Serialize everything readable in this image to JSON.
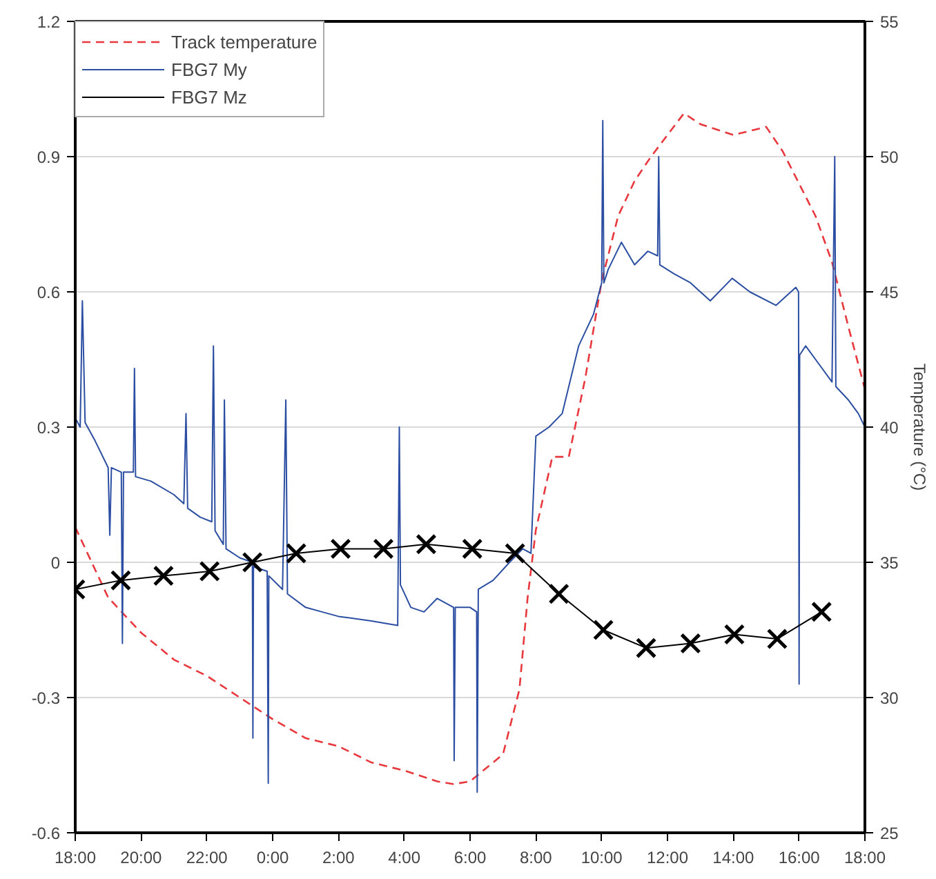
{
  "chart_data": {
    "type": "line",
    "xlim": [
      "2000-01-01T18:00",
      "2000-01-02T18:00"
    ],
    "xticks": [
      {
        "value": "2000-01-01T18:00",
        "label": "18:00"
      },
      {
        "value": "2000-01-01T20:00",
        "label": "20:00"
      },
      {
        "value": "2000-01-01T22:00",
        "label": "22:00"
      },
      {
        "value": "2000-01-02T00:00",
        "label": "0:00"
      },
      {
        "value": "2000-01-02T02:00",
        "label": "2:00"
      },
      {
        "value": "2000-01-02T04:00",
        "label": "4:00"
      },
      {
        "value": "2000-01-02T06:00",
        "label": "6:00"
      },
      {
        "value": "2000-01-02T08:00",
        "label": "8:00"
      },
      {
        "value": "2000-01-02T10:00",
        "label": "10:00"
      },
      {
        "value": "2000-01-02T12:00",
        "label": "12:00"
      },
      {
        "value": "2000-01-02T14:00",
        "label": "14:00"
      },
      {
        "value": "2000-01-02T16:00",
        "label": "16:00"
      },
      {
        "value": "2000-01-02T18:00",
        "label": "18:00"
      }
    ],
    "ylim": [
      -0.6,
      1.2
    ],
    "yticks": [
      {
        "value": -0.6,
        "label": "-0.6"
      },
      {
        "value": -0.3,
        "label": "-0.3"
      },
      0,
      {
        "value": 0.3,
        "label": "0.3"
      },
      {
        "value": 0.6,
        "label": "0.6"
      },
      {
        "value": 0.9,
        "label": "0.9"
      },
      {
        "value": 1.2,
        "label": "1.2"
      }
    ],
    "y2lim": [
      25,
      55
    ],
    "y2ticks": [
      25,
      30,
      35,
      40,
      45,
      50,
      55
    ],
    "y2label": "Temperature (°C)",
    "grid": "y",
    "legend": "top left",
    "series": [
      {
        "name": "Track temperature",
        "color": "#e8383d",
        "axis": "y2",
        "line_style": "dashed",
        "marker": "none",
        "x": [
          "2000-01-01T18:00",
          "2000-01-01T19:00",
          "2000-01-01T20:00",
          "2000-01-01T21:00",
          "2000-01-01T22:00",
          "2000-01-01T23:00",
          "2000-01-02T00:00",
          "2000-01-02T01:00",
          "2000-01-02T02:00",
          "2000-01-02T03:00",
          "2000-01-02T04:00",
          "2000-01-02T05:00",
          "2000-01-02T05:30",
          "2000-01-02T06:00",
          "2000-01-02T07:00",
          "2000-01-02T07:30",
          "2000-01-02T07:45",
          "2000-01-02T08:00",
          "2000-01-02T08:30",
          "2000-01-02T09:00",
          "2000-01-02T09:30",
          "2000-01-02T10:00",
          "2000-01-02T10:30",
          "2000-01-02T11:00",
          "2000-01-02T11:30",
          "2000-01-02T12:00",
          "2000-01-02T12:30",
          "2000-01-02T13:00",
          "2000-01-02T14:00",
          "2000-01-02T15:00",
          "2000-01-02T15:30",
          "2000-01-02T16:00",
          "2000-01-02T16:30",
          "2000-01-02T17:00",
          "2000-01-02T17:30",
          "2000-01-02T18:00"
        ],
        "values": [
          36.3,
          33.7,
          32.4,
          31.4,
          30.8,
          30.0,
          29.2,
          28.5,
          28.2,
          27.6,
          27.3,
          26.9,
          26.8,
          26.9,
          27.9,
          30.3,
          33.7,
          36.2,
          38.9,
          38.9,
          41.8,
          45.4,
          47.8,
          49.1,
          50.0,
          50.8,
          51.6,
          51.2,
          50.8,
          51.1,
          50.2,
          49.0,
          47.8,
          46.1,
          43.7,
          41.4
        ]
      },
      {
        "name": "FBG7 My",
        "color": "#2b4ea2",
        "line_style": "solid",
        "marker": "none",
        "x": [
          "2000-01-01T18:00",
          "2000-01-01T18:09",
          "2000-01-01T18:13",
          "2000-01-01T18:18",
          "2000-01-01T18:36",
          "2000-01-01T19:00",
          "2000-01-01T19:03",
          "2000-01-01T19:06",
          "2000-01-01T19:24",
          "2000-01-01T19:26",
          "2000-01-01T19:28",
          "2000-01-01T19:46",
          "2000-01-01T19:48",
          "2000-01-01T19:50",
          "2000-01-01T20:18",
          "2000-01-01T21:00",
          "2000-01-01T21:18",
          "2000-01-01T21:22",
          "2000-01-01T21:25",
          "2000-01-01T21:48",
          "2000-01-01T22:09",
          "2000-01-01T22:12",
          "2000-01-01T22:15",
          "2000-01-01T22:30",
          "2000-01-01T22:32",
          "2000-01-01T22:35",
          "2000-01-01T23:00",
          "2000-01-01T23:23",
          "2000-01-01T23:24",
          "2000-01-01T23:25",
          "2000-01-01T23:50",
          "2000-01-01T23:52",
          "2000-01-01T23:53",
          "2000-01-02T00:18",
          "2000-01-02T00:24",
          "2000-01-02T00:27",
          "2000-01-02T01:00",
          "2000-01-02T01:30",
          "2000-01-02T02:00",
          "2000-01-02T03:00",
          "2000-01-02T03:48",
          "2000-01-02T03:51",
          "2000-01-02T03:53",
          "2000-01-02T04:12",
          "2000-01-02T04:36",
          "2000-01-02T05:00",
          "2000-01-02T05:30",
          "2000-01-02T05:31",
          "2000-01-02T05:33",
          "2000-01-02T06:00",
          "2000-01-02T06:12",
          "2000-01-02T06:13",
          "2000-01-02T06:15",
          "2000-01-02T06:42",
          "2000-01-02T07:12",
          "2000-01-02T07:36",
          "2000-01-02T07:51",
          "2000-01-02T08:00",
          "2000-01-02T08:24",
          "2000-01-02T08:48",
          "2000-01-02T09:18",
          "2000-01-02T09:45",
          "2000-01-02T10:00",
          "2000-01-02T10:02",
          "2000-01-02T10:04",
          "2000-01-02T10:12",
          "2000-01-02T10:36",
          "2000-01-02T11:00",
          "2000-01-02T11:24",
          "2000-01-02T11:42",
          "2000-01-02T11:44",
          "2000-01-02T11:46",
          "2000-01-02T12:12",
          "2000-01-02T12:42",
          "2000-01-02T13:18",
          "2000-01-02T13:58",
          "2000-01-02T14:30",
          "2000-01-02T15:18",
          "2000-01-02T15:54",
          "2000-01-02T15:59",
          "2000-01-02T16:00",
          "2000-01-02T16:01",
          "2000-01-02T16:12",
          "2000-01-02T16:36",
          "2000-01-02T17:00",
          "2000-01-02T17:05",
          "2000-01-02T17:07",
          "2000-01-02T17:30",
          "2000-01-02T17:48",
          "2000-01-02T18:00"
        ],
        "values": [
          0.32,
          0.3,
          0.58,
          0.31,
          0.27,
          0.21,
          0.06,
          0.21,
          0.2,
          -0.18,
          0.2,
          0.2,
          0.43,
          0.19,
          0.18,
          0.15,
          0.13,
          0.33,
          0.12,
          0.1,
          0.09,
          0.48,
          0.07,
          0.04,
          0.36,
          0.03,
          0.01,
          0.0,
          -0.39,
          -0.01,
          -0.02,
          -0.49,
          -0.03,
          -0.06,
          0.36,
          -0.07,
          -0.1,
          -0.11,
          -0.12,
          -0.13,
          -0.14,
          0.3,
          -0.05,
          -0.1,
          -0.11,
          -0.08,
          -0.1,
          -0.44,
          -0.1,
          -0.1,
          -0.11,
          -0.51,
          -0.06,
          -0.04,
          0.0,
          0.03,
          0.02,
          0.28,
          0.3,
          0.33,
          0.48,
          0.55,
          0.62,
          0.98,
          0.62,
          0.65,
          0.71,
          0.66,
          0.69,
          0.68,
          0.9,
          0.66,
          0.64,
          0.62,
          0.58,
          0.63,
          0.6,
          0.57,
          0.61,
          0.6,
          -0.27,
          0.46,
          0.48,
          0.44,
          0.4,
          0.9,
          0.39,
          0.36,
          0.33,
          0.3
        ]
      },
      {
        "name": "FBG7 Mz",
        "color": "#000000",
        "line_style": "solid",
        "marker": "cross",
        "x": [
          "2000-01-01T18:00",
          "2000-01-01T19:23",
          "2000-01-01T20:41",
          "2000-01-01T22:05",
          "2000-01-01T23:23",
          "2000-01-02T00:43",
          "2000-01-02T02:04",
          "2000-01-02T03:22",
          "2000-01-02T04:40",
          "2000-01-02T06:04",
          "2000-01-02T07:22",
          "2000-01-02T08:42",
          "2000-01-02T10:03",
          "2000-01-02T11:21",
          "2000-01-02T12:42",
          "2000-01-02T14:02",
          "2000-01-02T15:20",
          "2000-01-02T16:41"
        ],
        "values": [
          -0.06,
          -0.04,
          -0.03,
          -0.02,
          0.0,
          0.02,
          0.03,
          0.03,
          0.04,
          0.03,
          0.02,
          -0.07,
          -0.15,
          -0.19,
          -0.18,
          -0.16,
          -0.17,
          -0.11
        ]
      }
    ]
  }
}
